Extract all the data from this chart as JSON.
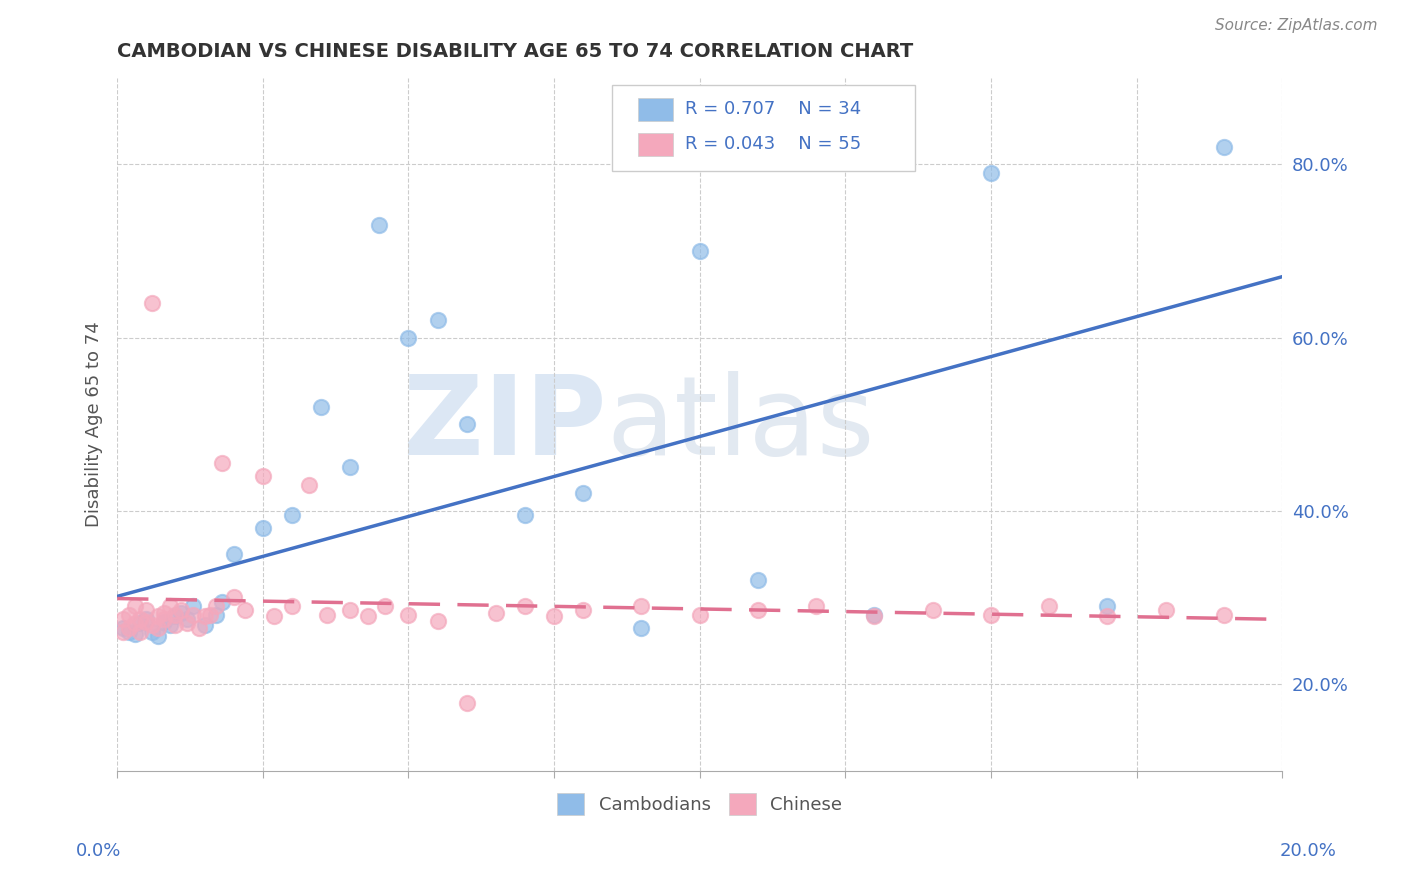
{
  "title": "CAMBODIAN VS CHINESE DISABILITY AGE 65 TO 74 CORRELATION CHART",
  "source_text": "Source: ZipAtlas.com",
  "ylabel": "Disability Age 65 to 74",
  "xlim": [
    0.0,
    0.2
  ],
  "ylim": [
    0.1,
    0.9
  ],
  "yticks": [
    0.2,
    0.4,
    0.6,
    0.8
  ],
  "ytick_labels": [
    "20.0%",
    "40.0%",
    "60.0%",
    "80.0%"
  ],
  "xtick_positions": [
    0.0,
    0.025,
    0.05,
    0.075,
    0.1,
    0.125,
    0.15,
    0.175,
    0.2
  ],
  "cambodian_R": 0.707,
  "cambodian_N": 34,
  "chinese_R": 0.043,
  "chinese_N": 55,
  "cambodian_color": "#90BCE8",
  "chinese_color": "#F4A8BC",
  "cambodian_line_color": "#4472C4",
  "chinese_line_color": "#E07090",
  "legend_label_cambodian": "Cambodians",
  "legend_label_chinese": "Chinese",
  "watermark_zip": "ZIP",
  "watermark_atlas": "atlas",
  "background_color": "#FFFFFF",
  "grid_color": "#CCCCCC",
  "title_color": "#333333",
  "axis_label_color": "#4472C4",
  "ylabel_color": "#555555",
  "source_color": "#888888",
  "cam_x": [
    0.001,
    0.002,
    0.003,
    0.004,
    0.005,
    0.006,
    0.007,
    0.008,
    0.009,
    0.01,
    0.011,
    0.012,
    0.013,
    0.015,
    0.017,
    0.018,
    0.02,
    0.025,
    0.03,
    0.035,
    0.04,
    0.045,
    0.05,
    0.055,
    0.06,
    0.07,
    0.08,
    0.09,
    0.1,
    0.11,
    0.13,
    0.15,
    0.17,
    0.19
  ],
  "cam_y": [
    0.265,
    0.26,
    0.258,
    0.27,
    0.275,
    0.26,
    0.255,
    0.272,
    0.268,
    0.278,
    0.282,
    0.275,
    0.29,
    0.268,
    0.28,
    0.295,
    0.35,
    0.38,
    0.395,
    0.52,
    0.45,
    0.73,
    0.6,
    0.62,
    0.5,
    0.395,
    0.42,
    0.265,
    0.7,
    0.32,
    0.28,
    0.79,
    0.29,
    0.82
  ],
  "chi_x": [
    0.001,
    0.001,
    0.002,
    0.002,
    0.003,
    0.003,
    0.004,
    0.004,
    0.005,
    0.005,
    0.006,
    0.006,
    0.007,
    0.007,
    0.008,
    0.008,
    0.009,
    0.01,
    0.01,
    0.011,
    0.012,
    0.013,
    0.014,
    0.015,
    0.016,
    0.017,
    0.018,
    0.02,
    0.022,
    0.025,
    0.027,
    0.03,
    0.033,
    0.036,
    0.04,
    0.043,
    0.046,
    0.05,
    0.055,
    0.06,
    0.065,
    0.07,
    0.075,
    0.08,
    0.09,
    0.1,
    0.11,
    0.12,
    0.13,
    0.14,
    0.15,
    0.16,
    0.17,
    0.18,
    0.19
  ],
  "chi_y": [
    0.275,
    0.26,
    0.28,
    0.265,
    0.29,
    0.27,
    0.275,
    0.26,
    0.285,
    0.272,
    0.64,
    0.268,
    0.278,
    0.265,
    0.282,
    0.275,
    0.29,
    0.28,
    0.268,
    0.285,
    0.27,
    0.28,
    0.265,
    0.278,
    0.28,
    0.29,
    0.455,
    0.3,
    0.285,
    0.44,
    0.278,
    0.29,
    0.43,
    0.28,
    0.285,
    0.278,
    0.29,
    0.28,
    0.273,
    0.178,
    0.282,
    0.29,
    0.278,
    0.285,
    0.29,
    0.28,
    0.285,
    0.29,
    0.278,
    0.285,
    0.28,
    0.29,
    0.278,
    0.285,
    0.28
  ]
}
